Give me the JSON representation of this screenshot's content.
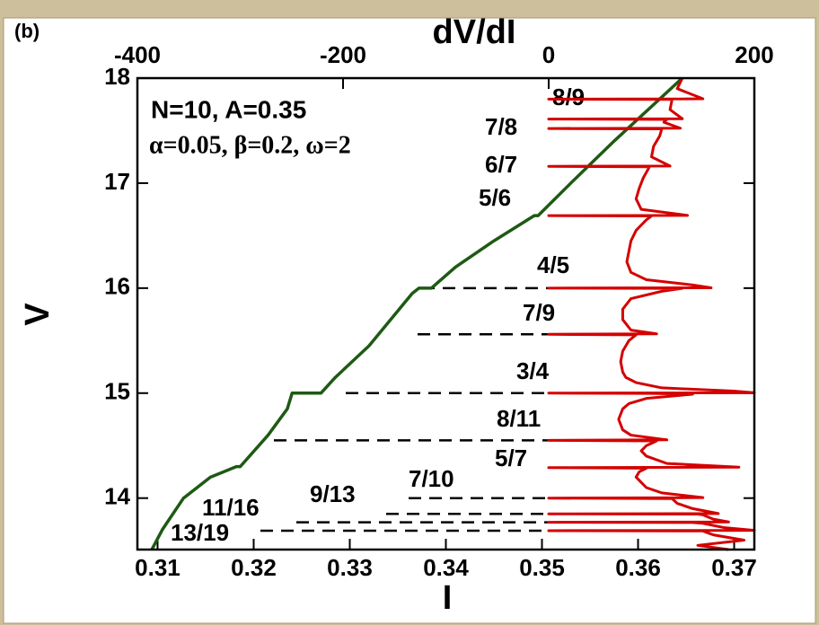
{
  "chart_data": {
    "type": "line",
    "panel_label": "(b)",
    "xlabel": "I",
    "ylabel": "V",
    "x2label": "dV/dI",
    "annotations": [
      "N=10, A=0.35",
      "α=0.05, β=0.2, ω=2"
    ],
    "xlim": [
      0.3079,
      0.3721
    ],
    "xticks": [
      0.31,
      0.32,
      0.33,
      0.34,
      0.35,
      0.36,
      0.37
    ],
    "x2lim": [
      -400,
      200
    ],
    "x2ticks": [
      -400,
      -200,
      0,
      200
    ],
    "ylim": [
      13.51,
      18
    ],
    "yticks": [
      14,
      15,
      16,
      17,
      18
    ],
    "series": [
      {
        "color": "#1e5a14",
        "axis": "x",
        "x": [
          0.3094,
          0.3105,
          0.3127,
          0.3155,
          0.3182,
          0.3186,
          0.3215,
          0.3235,
          0.324,
          0.327,
          0.3285,
          0.332,
          0.3365,
          0.3372,
          0.3385,
          0.341,
          0.345,
          0.3492,
          0.3496,
          0.353,
          0.3575,
          0.3646
        ],
        "y": [
          13.51,
          13.7,
          14.0,
          14.2,
          14.3,
          14.3,
          14.6,
          14.85,
          15.0,
          15.0,
          15.15,
          15.45,
          15.95,
          16.0,
          16.0,
          16.2,
          16.45,
          16.69,
          16.69,
          17.0,
          17.4,
          18.0
        ]
      },
      {
        "color": "#d40000",
        "axis": "x2",
        "x": [
          175,
          145,
          190,
          160,
          150,
          0,
          200,
          170,
          150,
          140,
          0,
          175,
          160,
          150,
          145,
          0,
          165,
          140,
          125,
          120,
          0,
          150,
          110,
          95,
          90,
          85,
          88,
          95,
          0,
          185,
          115,
          95,
          90,
          95,
          105,
          0,
          115,
          80,
          72,
          70,
          68,
          70,
          72,
          78,
          95,
          140,
          100,
          0,
          200,
          180,
          110,
          85,
          75,
          72,
          70,
          72,
          78,
          85,
          0,
          105,
          80,
          72,
          72,
          80,
          110,
          130,
          0,
          158,
          140,
          95,
          80,
          76,
          78,
          80,
          85,
          95,
          100,
          0,
          135,
          90,
          85,
          88,
          92,
          98,
          0,
          118,
          100,
          102,
          108,
          110,
          0,
          128,
          112,
          115,
          0,
          130,
          118,
          120,
          0,
          150,
          125,
          130
        ],
        "y": [
          13.51,
          13.55,
          13.6,
          13.65,
          13.687,
          13.69,
          13.693,
          13.72,
          13.76,
          13.768,
          13.77,
          13.773,
          13.8,
          13.84,
          13.848,
          13.85,
          13.853,
          13.9,
          13.95,
          13.995,
          14.0,
          14.005,
          14.05,
          14.1,
          14.15,
          14.2,
          14.25,
          14.285,
          14.29,
          14.295,
          14.33,
          14.4,
          14.45,
          14.5,
          14.545,
          14.55,
          14.555,
          14.6,
          14.65,
          14.7,
          14.75,
          14.8,
          14.85,
          14.9,
          14.95,
          14.99,
          14.997,
          15.0,
          15.003,
          15.02,
          15.05,
          15.1,
          15.15,
          15.2,
          15.3,
          15.4,
          15.5,
          15.555,
          15.56,
          15.565,
          15.6,
          15.7,
          15.8,
          15.9,
          15.97,
          15.997,
          16.0,
          16.003,
          16.03,
          16.08,
          16.15,
          16.25,
          16.35,
          16.45,
          16.55,
          16.65,
          16.687,
          16.69,
          16.693,
          16.75,
          16.85,
          16.95,
          17.05,
          17.155,
          17.16,
          17.163,
          17.25,
          17.35,
          17.45,
          17.517,
          17.52,
          17.523,
          17.58,
          17.607,
          17.61,
          17.613,
          17.7,
          17.797,
          17.8,
          17.803,
          17.9,
          18.0
        ]
      }
    ],
    "resonances": [
      {
        "label": "8/9",
        "V": 17.8
      },
      {
        "label": "7/8",
        "V": 17.52
      },
      {
        "label": "6/7",
        "V": 17.16
      },
      {
        "label": "5/6",
        "V": 16.69
      },
      {
        "label": "4/5",
        "V": 16.0
      },
      {
        "label": "7/9",
        "V": 15.56
      },
      {
        "label": "3/4",
        "V": 15.0
      },
      {
        "label": "8/11",
        "V": 14.55
      },
      {
        "label": "5/7",
        "V": 14.29
      },
      {
        "label": "7/10",
        "V": 14.0
      },
      {
        "label": "9/13",
        "V": 13.85
      },
      {
        "label": "11/16",
        "V": 13.77
      },
      {
        "label": "13/19",
        "V": 13.69
      }
    ]
  }
}
